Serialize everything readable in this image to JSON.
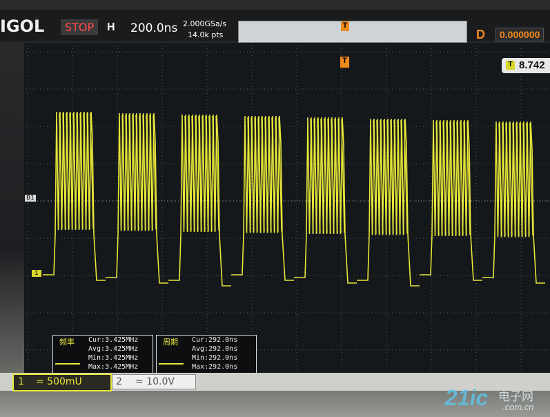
{
  "header": {
    "brand": "IGOL",
    "status": "STOP",
    "timebase_label": "H",
    "timebase": "200.0ns",
    "sample_rate": "2.000GSa/s",
    "memory_depth": "14.0k pts",
    "trigger_marker": "T",
    "delay_label": "D",
    "delay": "0.000000"
  },
  "screen": {
    "trigger_level_icon": "T",
    "trigger_level": "8.742",
    "trigger_position": "T",
    "b1_marker": "B1",
    "ch1_marker": "1"
  },
  "measurements": [
    {
      "title": "频率",
      "lines": [
        "Cur:3.425MHz",
        "Avg:3.425MHz",
        "Min:3.425MHz",
        "Max:3.425MHz"
      ]
    },
    {
      "title": "周期",
      "lines": [
        "Cur:292.0ns",
        "Avg:292.0ns",
        "Min:292.0ns",
        "Max:292.0ns"
      ]
    }
  ],
  "footer": {
    "channels": [
      {
        "number": "1",
        "scale": "= 500mU"
      },
      {
        "number": "2",
        "scale": "= 10.0V"
      }
    ]
  },
  "watermark": {
    "brand": "21ic",
    "name": "电子网",
    "domain": ".com.cn"
  }
}
